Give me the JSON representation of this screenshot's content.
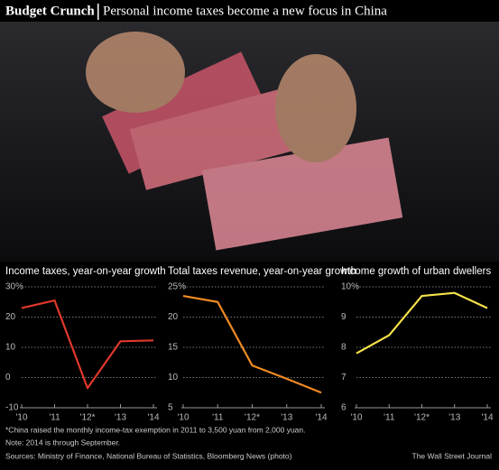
{
  "header": {
    "title": "Budget Crunch",
    "subtitle": "Personal income taxes become a new focus in China"
  },
  "chart_data": [
    {
      "type": "line",
      "title": "Income taxes, year-on-year growth",
      "categories": [
        "'10",
        "'11",
        "'12*",
        "'13",
        "'14"
      ],
      "series": [
        {
          "color": "#e0392b",
          "values": [
            23,
            25.5,
            -3.5,
            12,
            12.3
          ]
        }
      ],
      "ylim": [
        -10,
        30
      ],
      "yticks": [
        -10,
        0,
        10,
        20,
        {
          "value": 30,
          "label": "30%"
        }
      ],
      "grid": true
    },
    {
      "type": "line",
      "title": "Total taxes revenue, year-on-year growth",
      "categories": [
        "'10",
        "'11",
        "'12*",
        "'13",
        "'14"
      ],
      "series": [
        {
          "color": "#f08a24",
          "values": [
            23.5,
            22.5,
            12,
            9.8,
            7.5
          ]
        }
      ],
      "ylim": [
        5,
        25
      ],
      "yticks": [
        5,
        10,
        15,
        20,
        {
          "value": 25,
          "label": "25%"
        }
      ],
      "grid": true
    },
    {
      "type": "line",
      "title": "Income growth of urban dwellers",
      "categories": [
        "'10",
        "'11",
        "'12*",
        "'13",
        "'14"
      ],
      "series": [
        {
          "color": "#f5e14a",
          "values": [
            7.8,
            8.4,
            9.7,
            9.8,
            9.3
          ]
        }
      ],
      "ylim": [
        6,
        10
      ],
      "yticks": [
        6,
        7,
        8,
        9,
        {
          "value": 10,
          "label": "10%"
        }
      ],
      "grid": true
    }
  ],
  "footer": {
    "note1": "*China raised the monthly income-tax exemption in 2011  to 3,500 yuan from 2,000 yuan.",
    "note2": "Note: 2014 is through September.",
    "sources": "Sources: Ministry of Finance, National Bureau of Statistics, Bloomberg News (photo)",
    "credit": "The Wall Street Journal"
  }
}
